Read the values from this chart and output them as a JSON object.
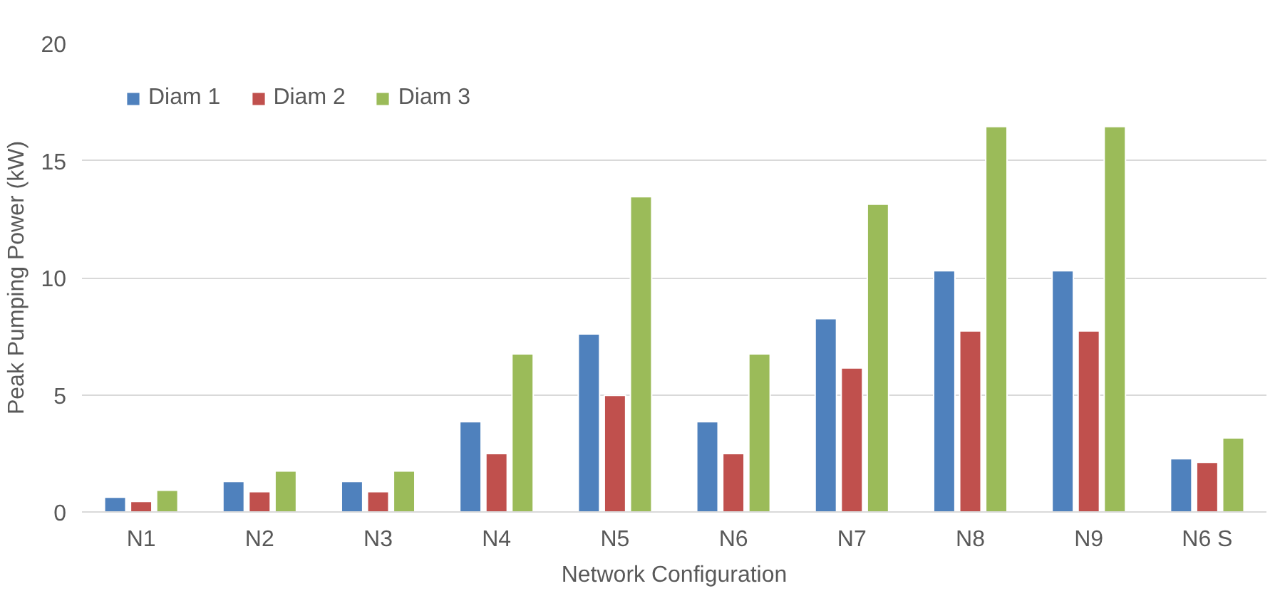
{
  "chart_data": {
    "type": "bar",
    "xlabel": "Network Configuration",
    "ylabel": "Peak Pumping Power (kW)",
    "categories": [
      "N1",
      "N2",
      "N3",
      "N4",
      "N5",
      "N6",
      "N7",
      "N8",
      "N9",
      "N6 S"
    ],
    "series": [
      {
        "name": "Diam 1",
        "color": "#4f81bd",
        "values": [
          0.63,
          1.3,
          1.3,
          3.85,
          7.6,
          3.85,
          8.25,
          10.3,
          10.3,
          2.27
        ]
      },
      {
        "name": "Diam 2",
        "color": "#c0504d",
        "values": [
          0.45,
          0.87,
          0.87,
          2.49,
          4.98,
          2.49,
          6.15,
          7.73,
          7.73,
          2.12
        ]
      },
      {
        "name": "Diam 3",
        "color": "#9bbb59",
        "values": [
          0.93,
          1.75,
          1.75,
          6.75,
          13.46,
          6.75,
          13.14,
          16.45,
          16.45,
          3.16
        ]
      }
    ],
    "ylim": [
      0,
      20
    ],
    "yticks": [
      0,
      5,
      10,
      15,
      20
    ],
    "grid": "y",
    "legend": "top left"
  }
}
